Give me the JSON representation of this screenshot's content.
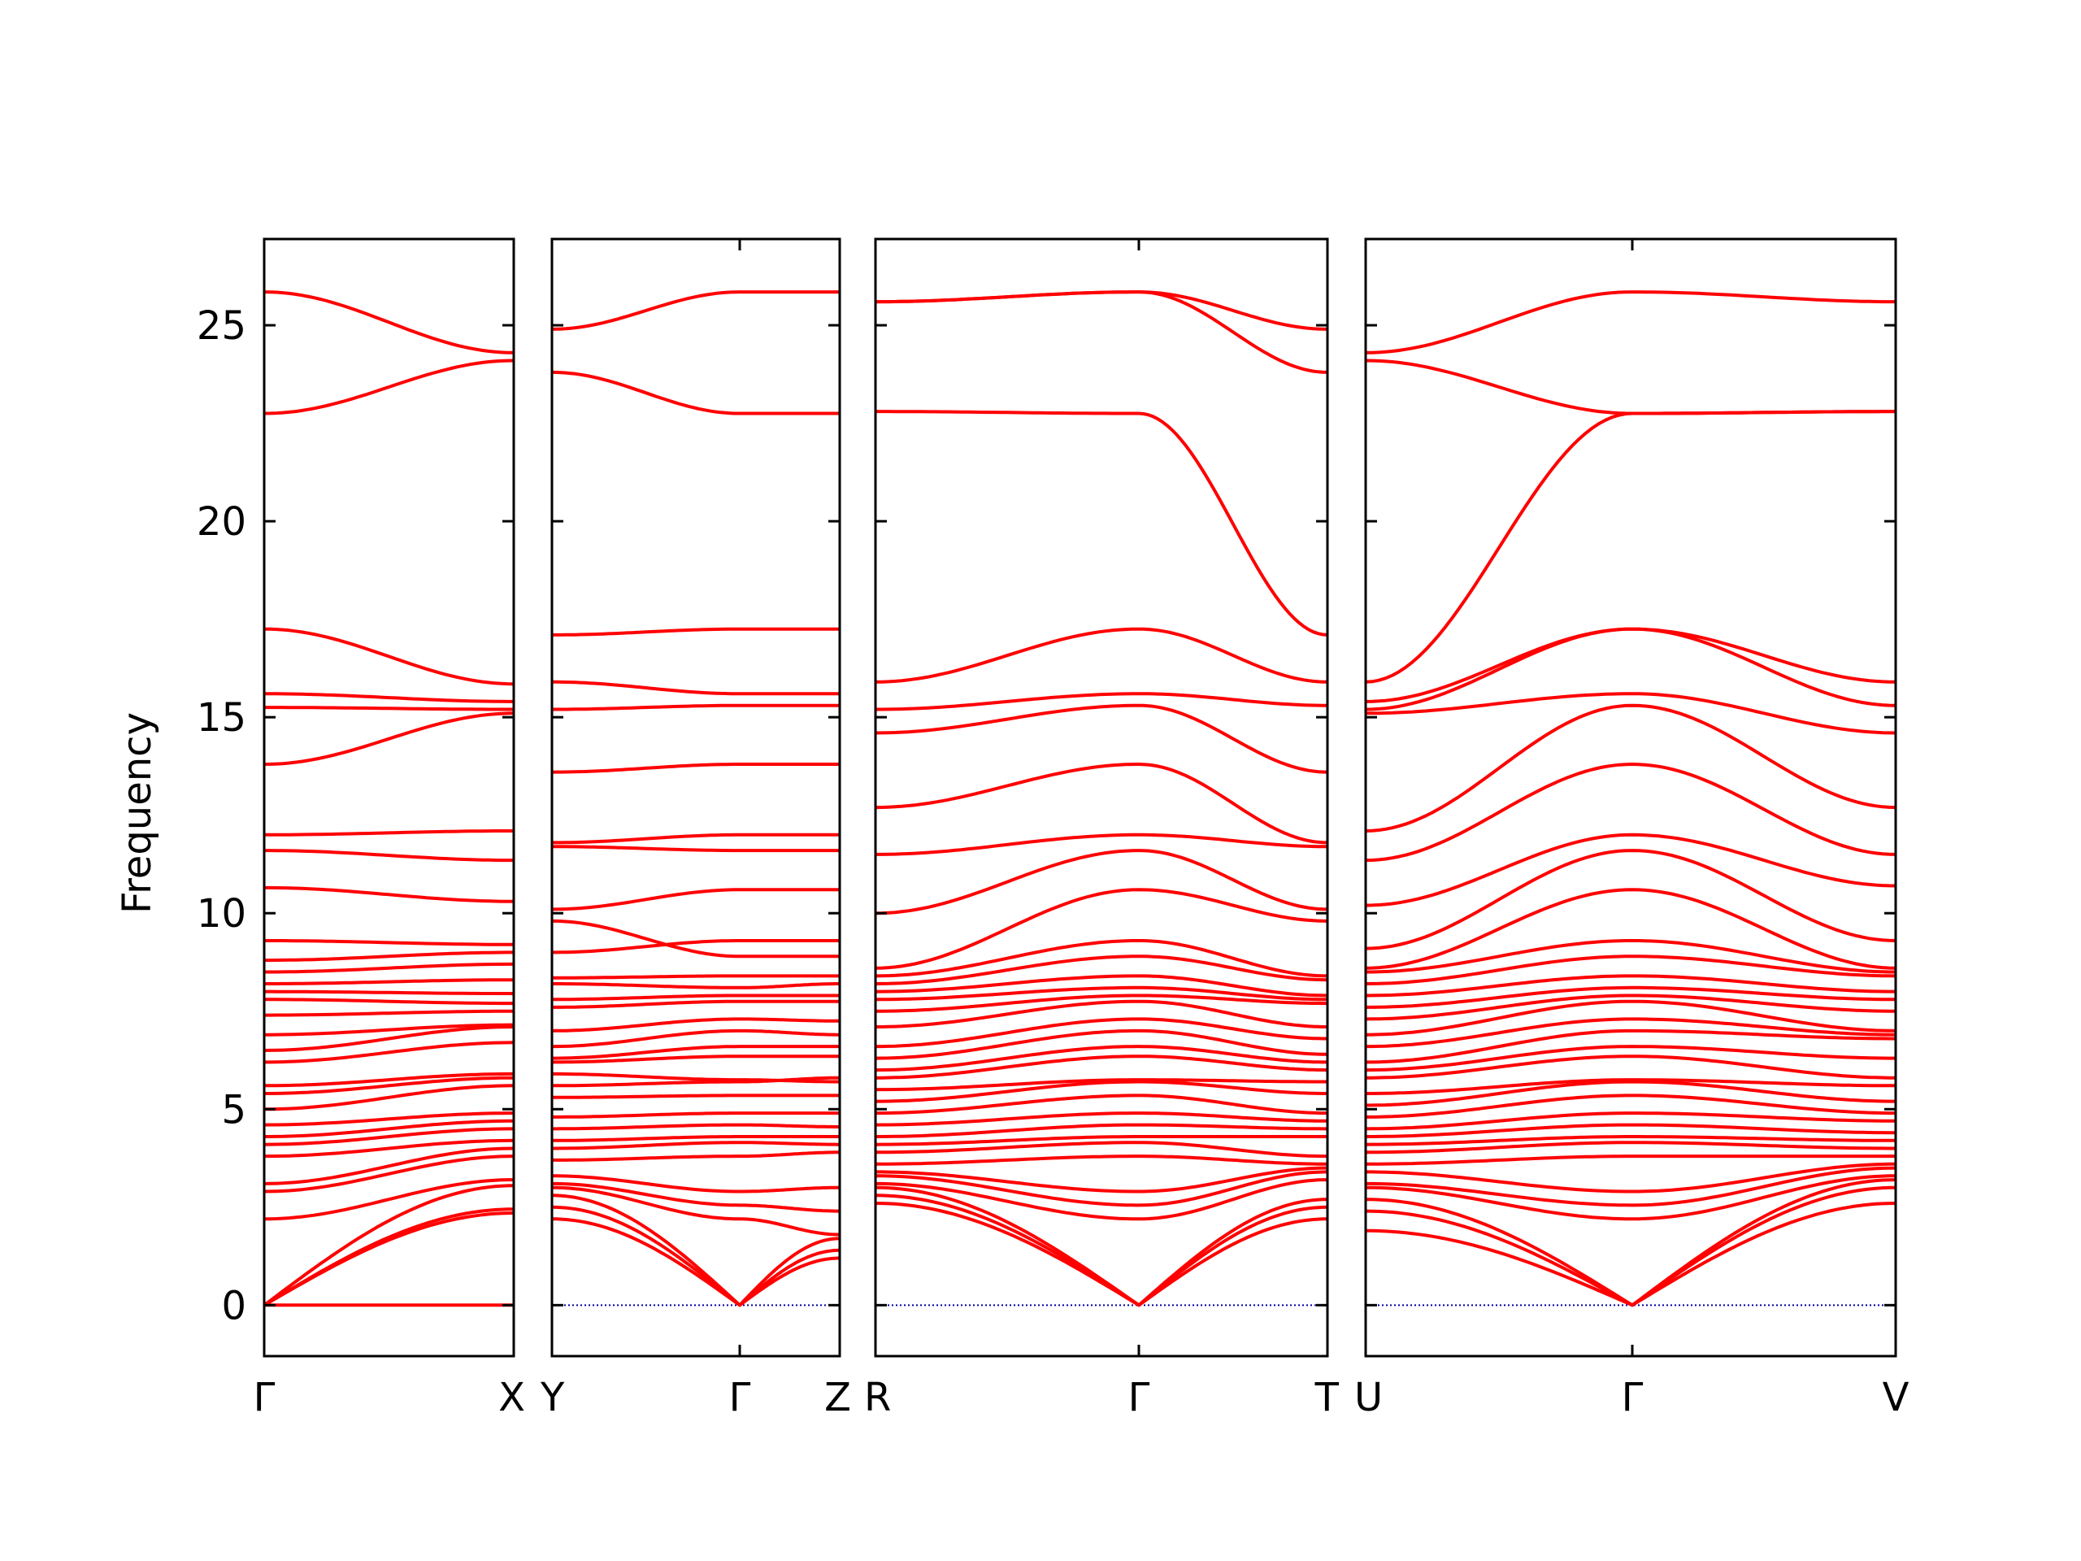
{
  "chart_data": {
    "type": "line",
    "title": "",
    "ylabel": "Frequency",
    "ylim": [
      -1.3,
      27.2
    ],
    "yticks": [
      0,
      5,
      10,
      15,
      20,
      25
    ],
    "grid": false,
    "legend": "none",
    "colors": {
      "bands": "#ff0000",
      "zero_line": "#0000aa",
      "frame": "#000000"
    },
    "panels": [
      {
        "x_labels": [
          "Γ",
          "X"
        ],
        "bands": [
          [
            0,
            0
          ],
          [
            0,
            2.35
          ],
          [
            0,
            2.45
          ],
          [
            0,
            3.05
          ],
          [
            2.2,
            3.2
          ],
          [
            2.9,
            3.8
          ],
          [
            3.1,
            4.0
          ],
          [
            3.8,
            4.2
          ],
          [
            4.1,
            4.5
          ],
          [
            4.3,
            4.7
          ],
          [
            4.6,
            4.9
          ],
          [
            5.0,
            5.6
          ],
          [
            5.4,
            5.8
          ],
          [
            5.6,
            5.9
          ],
          [
            6.2,
            6.7
          ],
          [
            6.5,
            7.1
          ],
          [
            6.9,
            7.15
          ],
          [
            7.4,
            7.5
          ],
          [
            7.8,
            7.7
          ],
          [
            8.0,
            7.95
          ],
          [
            8.2,
            8.3
          ],
          [
            8.5,
            8.7
          ],
          [
            8.8,
            9.0
          ],
          [
            9.3,
            9.2
          ],
          [
            10.65,
            10.3
          ],
          [
            11.6,
            11.35
          ],
          [
            12.0,
            12.1
          ],
          [
            13.8,
            15.1
          ],
          [
            15.25,
            15.2
          ],
          [
            15.6,
            15.4
          ],
          [
            17.25,
            15.85
          ],
          [
            22.75,
            24.1
          ],
          [
            25.85,
            24.3
          ]
        ]
      },
      {
        "x_labels": [
          "Y",
          "Γ",
          "Z"
        ],
        "bands": [
          [
            2.2,
            0,
            1.2
          ],
          [
            2.5,
            0,
            1.4
          ],
          [
            2.8,
            0,
            1.7
          ],
          [
            3.0,
            2.2,
            1.8
          ],
          [
            3.1,
            2.55,
            2.4
          ],
          [
            3.3,
            2.9,
            3.0
          ],
          [
            3.7,
            3.8,
            3.9
          ],
          [
            4.0,
            4.15,
            4.1
          ],
          [
            4.2,
            4.3,
            4.3
          ],
          [
            4.5,
            4.6,
            4.55
          ],
          [
            4.8,
            4.9,
            4.9
          ],
          [
            5.3,
            5.35,
            5.35
          ],
          [
            5.6,
            5.7,
            5.8
          ],
          [
            5.9,
            5.75,
            5.7
          ],
          [
            6.2,
            6.35,
            6.35
          ],
          [
            6.3,
            6.6,
            6.6
          ],
          [
            6.6,
            7.0,
            6.9
          ],
          [
            7.0,
            7.3,
            7.25
          ],
          [
            7.6,
            7.75,
            7.75
          ],
          [
            7.8,
            7.9,
            7.9
          ],
          [
            8.2,
            8.1,
            8.2
          ],
          [
            8.35,
            8.4,
            8.4
          ],
          [
            9.0,
            9.3,
            9.3
          ],
          [
            9.8,
            8.9,
            8.9
          ],
          [
            10.1,
            10.6,
            10.6
          ],
          [
            11.7,
            11.6,
            11.6
          ],
          [
            11.8,
            12.0,
            12.0
          ],
          [
            13.6,
            13.8,
            13.8
          ],
          [
            15.2,
            15.3,
            15.3
          ],
          [
            15.9,
            15.6,
            15.6
          ],
          [
            17.1,
            17.25,
            17.25
          ],
          [
            23.8,
            22.75,
            22.75
          ],
          [
            24.9,
            25.85,
            25.85
          ]
        ]
      },
      {
        "x_labels": [
          "R",
          "Γ",
          "T"
        ],
        "bands": [
          [
            2.6,
            0,
            2.2
          ],
          [
            2.8,
            0,
            2.5
          ],
          [
            3.0,
            0,
            2.7
          ],
          [
            3.1,
            2.2,
            3.2
          ],
          [
            3.3,
            2.55,
            3.4
          ],
          [
            3.4,
            2.9,
            3.5
          ],
          [
            3.6,
            3.8,
            3.6
          ],
          [
            3.9,
            4.15,
            3.8
          ],
          [
            4.1,
            4.3,
            4.3
          ],
          [
            4.3,
            4.6,
            4.5
          ],
          [
            4.6,
            4.9,
            4.7
          ],
          [
            4.9,
            5.35,
            4.9
          ],
          [
            5.2,
            5.7,
            5.4
          ],
          [
            5.5,
            5.75,
            5.7
          ],
          [
            5.8,
            6.35,
            6.0
          ],
          [
            6.0,
            6.6,
            6.2
          ],
          [
            6.3,
            7.0,
            6.4
          ],
          [
            6.6,
            7.3,
            6.8
          ],
          [
            7.1,
            7.75,
            7.1
          ],
          [
            7.5,
            7.9,
            7.7
          ],
          [
            7.8,
            8.1,
            7.8
          ],
          [
            8.0,
            8.4,
            7.9
          ],
          [
            8.2,
            8.9,
            8.3
          ],
          [
            8.4,
            9.3,
            8.4
          ],
          [
            8.6,
            10.6,
            9.8
          ],
          [
            10.0,
            11.6,
            10.1
          ],
          [
            11.5,
            12.0,
            11.7
          ],
          [
            12.7,
            13.8,
            11.8
          ],
          [
            14.6,
            15.3,
            13.6
          ],
          [
            15.2,
            15.6,
            15.3
          ],
          [
            15.9,
            17.25,
            15.9
          ],
          [
            22.8,
            22.75,
            17.1
          ],
          [
            25.6,
            25.85,
            23.8
          ],
          [
            25.6,
            25.85,
            24.9
          ]
        ]
      },
      {
        "x_labels": [
          "U",
          "Γ",
          "V"
        ],
        "bands": [
          [
            1.9,
            0,
            2.6
          ],
          [
            2.4,
            0,
            3.0
          ],
          [
            2.7,
            0,
            3.2
          ],
          [
            3.0,
            2.2,
            3.3
          ],
          [
            3.1,
            2.55,
            3.5
          ],
          [
            3.4,
            2.9,
            3.6
          ],
          [
            3.6,
            3.8,
            3.8
          ],
          [
            3.9,
            4.15,
            4.0
          ],
          [
            4.1,
            4.3,
            4.2
          ],
          [
            4.3,
            4.6,
            4.4
          ],
          [
            4.5,
            4.9,
            4.7
          ],
          [
            4.8,
            5.35,
            4.9
          ],
          [
            5.1,
            5.7,
            5.2
          ],
          [
            5.4,
            5.75,
            5.6
          ],
          [
            5.8,
            6.35,
            5.8
          ],
          [
            6.0,
            6.6,
            6.3
          ],
          [
            6.2,
            7.0,
            6.8
          ],
          [
            6.6,
            7.3,
            6.9
          ],
          [
            6.9,
            7.75,
            7.0
          ],
          [
            7.3,
            7.9,
            7.5
          ],
          [
            7.6,
            8.1,
            7.8
          ],
          [
            7.9,
            8.4,
            8.0
          ],
          [
            8.2,
            8.9,
            8.4
          ],
          [
            8.5,
            9.3,
            8.5
          ],
          [
            8.6,
            10.6,
            8.6
          ],
          [
            9.1,
            11.6,
            9.3
          ],
          [
            10.2,
            12.0,
            10.7
          ],
          [
            11.35,
            13.8,
            11.5
          ],
          [
            12.1,
            15.3,
            12.7
          ],
          [
            15.1,
            15.6,
            14.6
          ],
          [
            15.2,
            17.25,
            15.3
          ],
          [
            15.4,
            17.25,
            15.9
          ],
          [
            15.9,
            22.75,
            22.8
          ],
          [
            24.1,
            22.75,
            22.8
          ],
          [
            24.3,
            25.85,
            25.6
          ]
        ]
      }
    ]
  }
}
